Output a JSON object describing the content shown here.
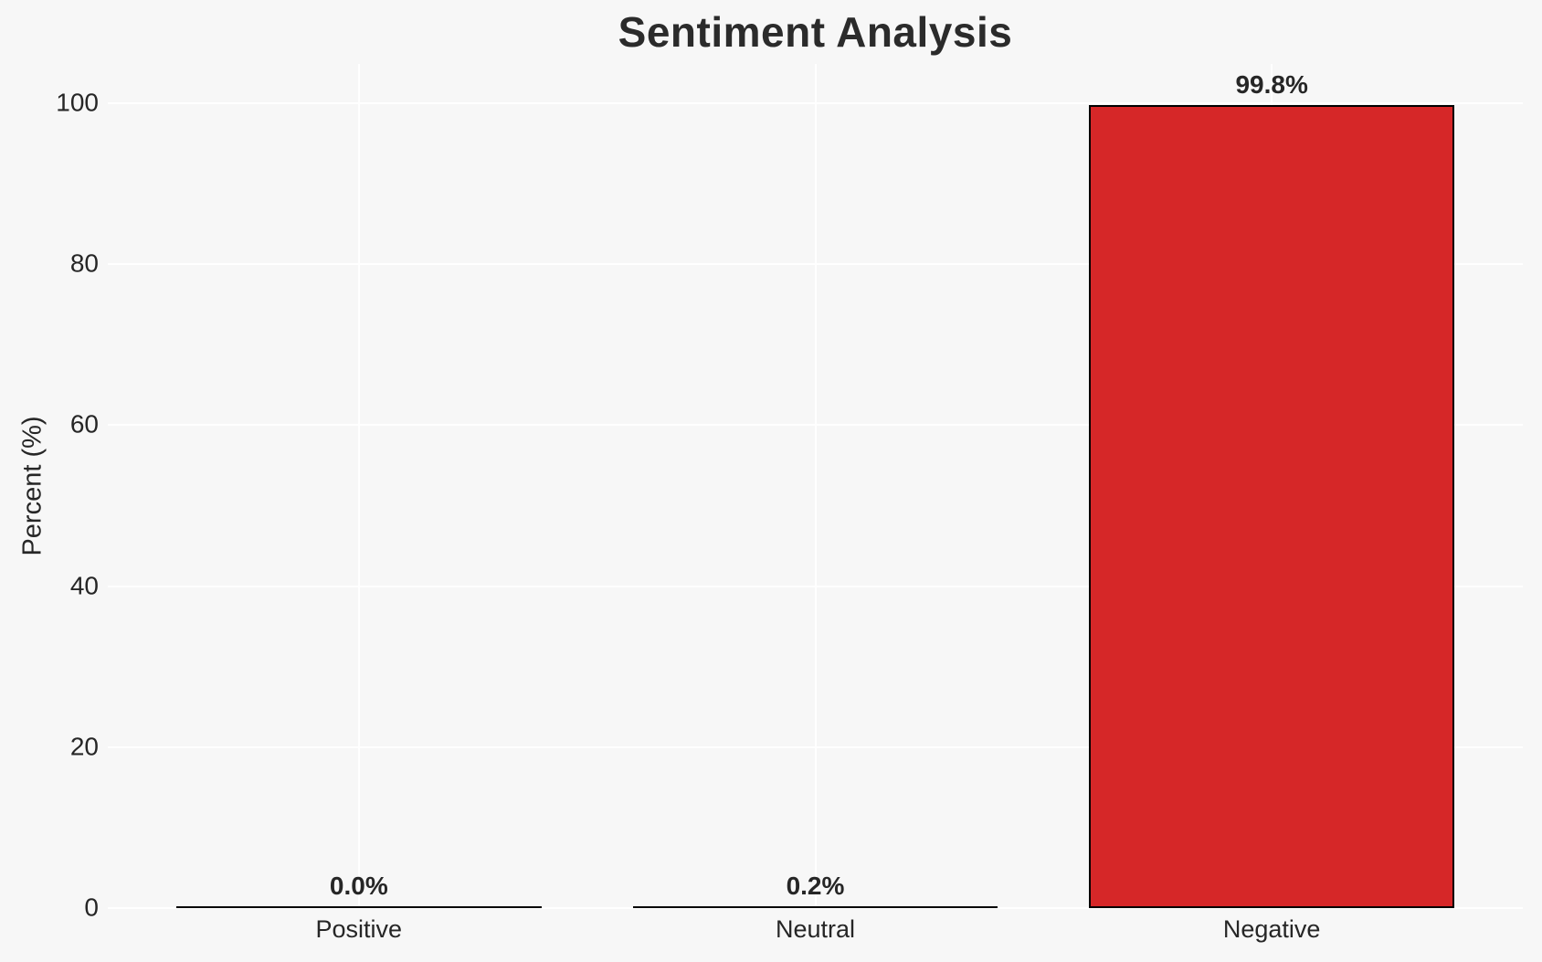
{
  "figure": {
    "title": "Sentiment Analysis"
  },
  "chart_data": {
    "type": "bar",
    "title": "Sentiment Analysis",
    "xlabel": "",
    "ylabel": "Percent (%)",
    "categories": [
      "Positive",
      "Neutral",
      "Negative"
    ],
    "values": [
      0.0,
      0.2,
      99.8
    ],
    "value_labels": [
      "0.0%",
      "0.2%",
      "99.8%"
    ],
    "yticks": [
      0,
      20,
      40,
      60,
      80,
      100
    ],
    "ytick_labels": [
      "0",
      "20",
      "40",
      "60",
      "80",
      "100"
    ],
    "ylim": [
      0,
      105
    ],
    "grid": true,
    "grid_vertical_at_categories": true,
    "legend": false,
    "colors": {
      "negative_bar_fill": "#d62728",
      "bar_edge": "#000000",
      "background": "#f7f7f7",
      "gridline": "#ffffff",
      "text": "#262626"
    }
  }
}
